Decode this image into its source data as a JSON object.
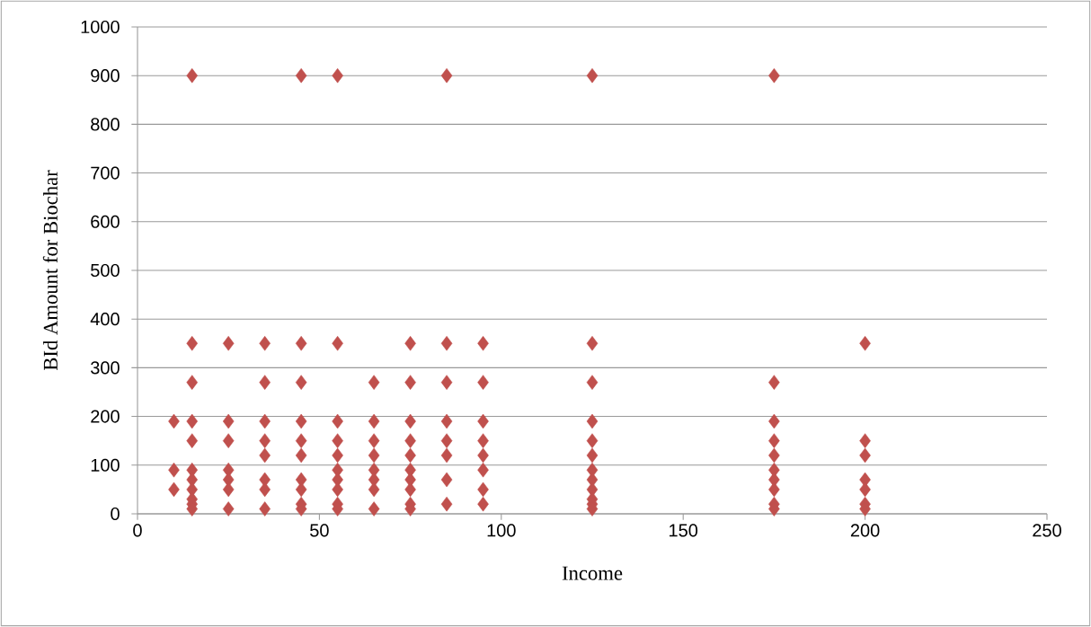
{
  "chart_data": {
    "type": "scatter",
    "xlabel": "Income",
    "ylabel": "BId Amount  for Biochar",
    "x": [
      10,
      10,
      10,
      15,
      15,
      15,
      15,
      15,
      15,
      15,
      15,
      15,
      15,
      15,
      25,
      25,
      25,
      25,
      25,
      25,
      25,
      35,
      35,
      35,
      35,
      35,
      35,
      35,
      35,
      45,
      45,
      45,
      45,
      45,
      45,
      45,
      45,
      45,
      45,
      55,
      55,
      55,
      55,
      55,
      55,
      55,
      55,
      55,
      55,
      65,
      65,
      65,
      65,
      65,
      65,
      65,
      65,
      75,
      75,
      75,
      75,
      75,
      75,
      75,
      75,
      75,
      75,
      85,
      85,
      85,
      85,
      85,
      85,
      85,
      85,
      95,
      95,
      95,
      95,
      95,
      95,
      95,
      95,
      125,
      125,
      125,
      125,
      125,
      125,
      125,
      125,
      125,
      125,
      125,
      125,
      175,
      175,
      175,
      175,
      175,
      175,
      175,
      175,
      175,
      175,
      200,
      200,
      200,
      200,
      200,
      200,
      200
    ],
    "values": [
      190,
      90,
      50,
      900,
      350,
      270,
      190,
      150,
      90,
      70,
      50,
      30,
      20,
      10,
      350,
      190,
      150,
      90,
      70,
      50,
      10,
      350,
      270,
      190,
      150,
      120,
      70,
      50,
      10,
      900,
      350,
      270,
      190,
      150,
      120,
      70,
      50,
      20,
      10,
      900,
      350,
      190,
      150,
      120,
      90,
      70,
      50,
      20,
      10,
      270,
      190,
      150,
      120,
      90,
      70,
      50,
      10,
      350,
      270,
      190,
      150,
      120,
      90,
      70,
      50,
      20,
      10,
      900,
      350,
      270,
      190,
      150,
      120,
      70,
      20,
      350,
      270,
      190,
      150,
      120,
      90,
      50,
      20,
      900,
      350,
      270,
      190,
      150,
      120,
      90,
      70,
      50,
      30,
      20,
      10,
      900,
      270,
      190,
      150,
      120,
      90,
      70,
      50,
      20,
      10,
      350,
      150,
      120,
      70,
      50,
      20,
      10
    ],
    "color": "#c0504d",
    "marker": "diamond",
    "grid": "y",
    "xlim": [
      0,
      250
    ],
    "xticks": [
      0,
      50,
      100,
      150,
      200,
      250
    ],
    "ylim": [
      0,
      1000
    ],
    "yticks": [
      0,
      100,
      200,
      300,
      400,
      500,
      600,
      700,
      800,
      900,
      1000
    ]
  }
}
